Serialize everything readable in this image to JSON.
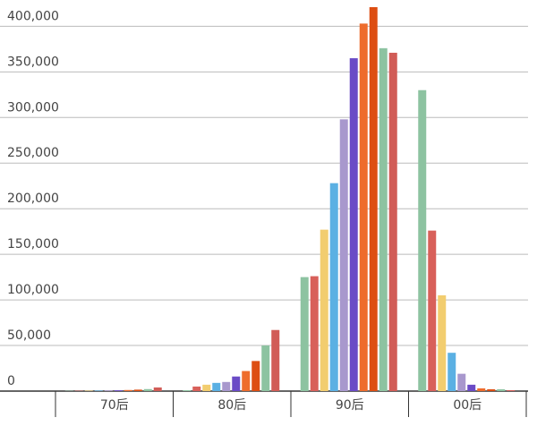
{
  "chart_data": {
    "type": "bar",
    "categories": [
      "70后",
      "80后",
      "90后",
      "00后"
    ],
    "series": [
      {
        "color": "#8dc3a1",
        "values": [
          300,
          1000,
          125000,
          330000
        ]
      },
      {
        "color": "#d8605a",
        "values": [
          400,
          5000,
          126000,
          176000
        ]
      },
      {
        "color": "#f2cd6f",
        "values": [
          500,
          7000,
          177000,
          105000
        ]
      },
      {
        "color": "#5bb0e3",
        "values": [
          600,
          9000,
          228000,
          42000
        ]
      },
      {
        "color": "#a898cd",
        "values": [
          700,
          10000,
          298000,
          19000
        ]
      },
      {
        "color": "#6a4bc6",
        "values": [
          900,
          16000,
          365000,
          7000
        ]
      },
      {
        "color": "#ee6c2c",
        "values": [
          1200,
          22000,
          403000,
          3000
        ]
      },
      {
        "color": "#dd4e12",
        "values": [
          1600,
          33000,
          421000,
          2000
        ]
      },
      {
        "color": "#8dc3a1",
        "values": [
          2200,
          50000,
          376000,
          2000
        ]
      },
      {
        "color": "#d15c57",
        "values": [
          4000,
          67000,
          371000,
          1000
        ]
      }
    ],
    "ylim": [
      0,
      421000
    ],
    "yticks": [
      0,
      {
        "value": 50000,
        "label": "50,000"
      },
      {
        "value": 100000,
        "label": "100,000"
      },
      {
        "value": 150000,
        "label": "150,000"
      },
      {
        "value": 200000,
        "label": "200,000"
      },
      {
        "value": 250000,
        "label": "250,000"
      },
      {
        "value": 300000,
        "label": "300,000"
      },
      {
        "value": 350000,
        "label": "350,000"
      },
      {
        "value": 400000,
        "label": "400,000"
      }
    ],
    "grid": true
  }
}
